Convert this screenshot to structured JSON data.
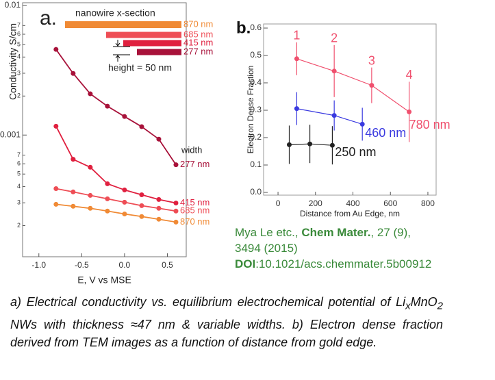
{
  "chart_data": [
    {
      "type": "line",
      "panel_label": "a.",
      "y_label": "Conductivity S/cm",
      "x_label": "E, V vs MSE",
      "log_y": true,
      "legend_title": "nanowire x-section",
      "annotations": [
        "height = 50 nm",
        "width"
      ],
      "x": [
        -0.8,
        -0.6,
        -0.4,
        -0.2,
        0,
        0.2,
        0.4,
        0.6
      ],
      "series": [
        {
          "name": "870 nm",
          "color": "#f08a35",
          "values": [
            0.000292,
            0.000282,
            0.000272,
            0.000259,
            0.000246,
            0.000235,
            0.000224,
            0.000213
          ]
        },
        {
          "name": "685 nm",
          "color": "#ee4d55",
          "values": [
            0.000386,
            0.000364,
            0.000342,
            0.000322,
            0.000303,
            0.000285,
            0.000272,
            0.000259
          ]
        },
        {
          "name": "415 nm",
          "color": "#e0203f",
          "values": [
            0.00117,
            0.00065,
            0.000564,
            0.000421,
            0.000377,
            0.000346,
            0.000318,
            0.000299
          ]
        },
        {
          "name": "277 nm",
          "color": "#a8123a",
          "values": [
            0.00458,
            0.00299,
            0.00208,
            0.00167,
            0.00139,
            0.00116,
            0.00093,
            0.00059
          ]
        }
      ],
      "xlim": [
        -1.19,
        0.72
      ],
      "xticks": [
        {
          "value": -1,
          "label": "-1.0"
        },
        -0.5,
        {
          "value": 0,
          "label": "0.0"
        },
        0.5
      ],
      "ylim": [
        0.000115,
        0.01
      ],
      "yticks": [
        0.01,
        {
          "value": 0.007,
          "label": "7"
        },
        {
          "value": 0.006,
          "label": "6"
        },
        {
          "value": 0.005,
          "label": "5"
        },
        {
          "value": 0.004,
          "label": "4"
        },
        {
          "value": 0.003,
          "label": "3"
        },
        {
          "value": 0.002,
          "label": "2"
        },
        0.001,
        {
          "value": 0.0007,
          "label": "7"
        },
        {
          "value": 0.0006,
          "label": "6"
        },
        {
          "value": 0.0005,
          "label": "5"
        },
        {
          "value": 0.0004,
          "label": "4"
        },
        {
          "value": 0.0003,
          "label": "3"
        },
        {
          "value": 0.0002,
          "label": "2"
        }
      ]
    },
    {
      "type": "line",
      "panel_label": "b.",
      "y_label": "Electron Dense Fraction",
      "x_label": "Distance from Au Edge, nm",
      "series": [
        {
          "name": "780 nm",
          "color": "#f0506e",
          "x": [
            100,
            300,
            500,
            700
          ],
          "values": [
            0.488,
            0.443,
            0.391,
            0.294
          ],
          "errors": [
            0.06,
            0.095,
            0.065,
            0.11
          ],
          "point_labels": [
            "1",
            "2",
            "3",
            "4"
          ]
        },
        {
          "name": "460 nm",
          "color": "#3a3ae0",
          "x": [
            100,
            300,
            450
          ],
          "values": [
            0.306,
            0.281,
            0.249
          ],
          "errors": [
            0.06,
            0.055,
            0.06
          ]
        },
        {
          "name": "250 nm",
          "color": "#222222",
          "x": [
            60,
            170,
            290
          ],
          "values": [
            0.174,
            0.177,
            0.172
          ],
          "errors": [
            0.07,
            0.07,
            0.07
          ]
        }
      ],
      "xlim": [
        -77,
        844
      ],
      "xticks": [
        0,
        200,
        400,
        600,
        800
      ],
      "ylim": [
        -0.01,
        0.615
      ],
      "yticks": [
        {
          "value": 0,
          "label": "0.0"
        },
        0.1,
        0.2,
        0.3,
        0.4,
        0.5,
        0.6
      ]
    }
  ],
  "citation": {
    "authors": "Mya Le etc., ",
    "journal": "Chem Mater.",
    "details": ", 27 (9), 3494 (2015)",
    "doi_label": "DOI",
    "doi": ":10.1021/acs.chemmater.5b00912"
  },
  "caption": [
    "a) Electrical conductivity vs. equilibrium electrochemical potential of Li",
    "x",
    "MnO",
    "2",
    " NWs with thickness ≈47 nm & variable widths. b) Electron dense fraction derived from TEM images as a function of distance from gold edge."
  ]
}
